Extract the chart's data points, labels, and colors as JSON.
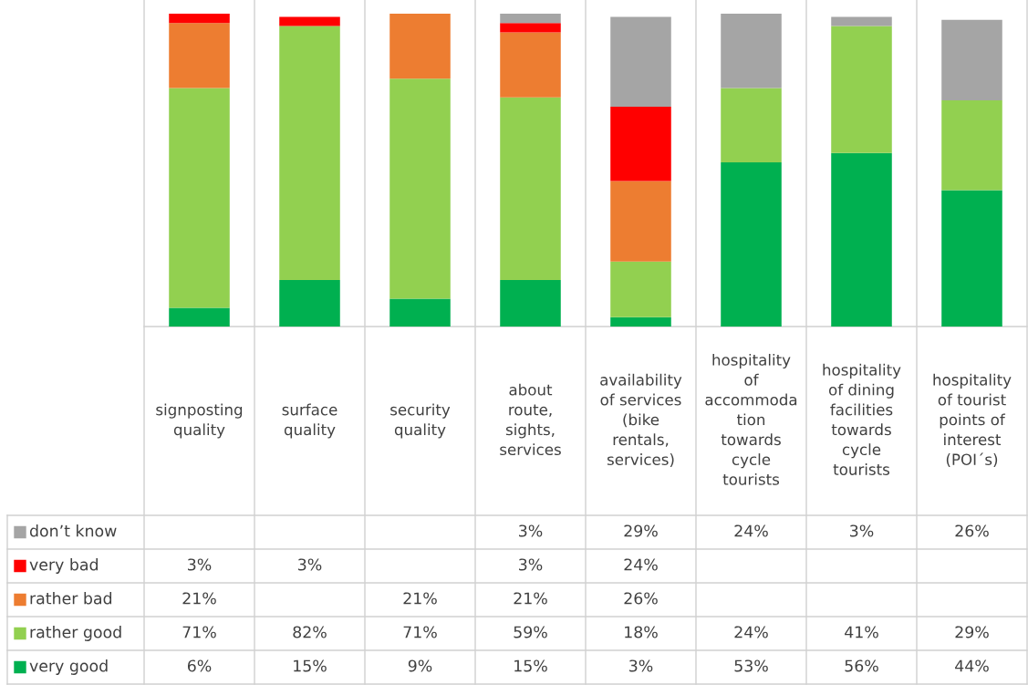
{
  "chart_data": {
    "type": "bar",
    "stacked": true,
    "legend": "bottom left",
    "categories": [
      "signposting\nquality",
      "surface\nquality",
      "security\nquality",
      "about\nroute,\nsights,\nservices",
      "availability\nof services\n(bike\nrentals,\nservices)",
      "hospitality\nof\naccommoda\ntion\ntowards\ncycle\ntourists",
      "hospitality\nof dining\nfacilities\ntowards\ncycle\ntourists",
      "hospitality\nof tourist\npoints of\ninterest\n(POI´s)"
    ],
    "series": [
      {
        "name": "very good",
        "color": "#00b050",
        "values": [
          6,
          15,
          9,
          15,
          3,
          53,
          56,
          44
        ],
        "value_labels": [
          "6%",
          "15%",
          "9%",
          "15%",
          "3%",
          "53%",
          "56%",
          "44%"
        ]
      },
      {
        "name": "rather good",
        "color": "#92d050",
        "values": [
          71,
          82,
          71,
          59,
          18,
          24,
          41,
          29
        ],
        "value_labels": [
          "71%",
          "82%",
          "71%",
          "59%",
          "18%",
          "24%",
          "41%",
          "29%"
        ]
      },
      {
        "name": "rather bad",
        "color": "#ed7d31",
        "values": [
          21,
          null,
          21,
          21,
          26,
          null,
          null,
          null
        ],
        "value_labels": [
          "21%",
          null,
          "21%",
          "21%",
          "26%",
          null,
          null,
          null
        ]
      },
      {
        "name": "very bad",
        "color": "#ff0000",
        "values": [
          3,
          3,
          null,
          3,
          24,
          null,
          null,
          null
        ],
        "value_labels": [
          "3%",
          "3%",
          null,
          "3%",
          "24%",
          null,
          null,
          null
        ]
      },
      {
        "name": "don’t know",
        "color": "#a5a5a5",
        "values": [
          null,
          null,
          null,
          3,
          29,
          24,
          3,
          26
        ],
        "value_labels": [
          null,
          null,
          null,
          "3%",
          "29%",
          "24%",
          "3%",
          "26%"
        ]
      }
    ]
  }
}
